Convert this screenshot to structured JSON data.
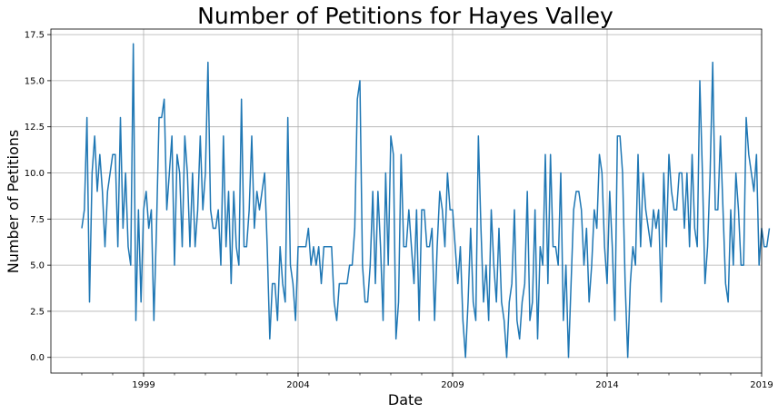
{
  "chart_data": {
    "type": "line",
    "title": "Number of Petitions for Hayes Valley",
    "xlabel": "Date",
    "ylabel": "Number of Petitions",
    "x_ticks": [
      "1999",
      "2004",
      "2009",
      "2014",
      "2019"
    ],
    "y_ticks": [
      "0.0",
      "2.5",
      "5.0",
      "7.5",
      "10.0",
      "12.5",
      "15.0",
      "17.5"
    ],
    "xlim": [
      "1996-01",
      "2019-01"
    ],
    "ylim": [
      -0.85,
      17.8
    ],
    "grid": true,
    "series": [
      {
        "color": "#1f77b4",
        "x_start": "1997-01",
        "x_step": "1 month",
        "values": [
          7,
          8,
          13,
          3,
          10,
          12,
          9,
          11,
          9,
          6,
          9,
          10,
          11,
          11,
          6,
          13,
          7,
          10,
          6,
          5,
          17,
          2,
          8,
          3,
          8,
          9,
          7,
          8,
          2,
          7,
          13,
          13,
          14,
          8,
          10,
          12,
          5,
          11,
          10,
          6,
          12,
          10,
          6,
          10,
          6,
          8,
          12,
          8,
          10,
          16,
          8,
          7,
          7,
          8,
          5,
          12,
          6,
          9,
          4,
          9,
          6,
          5,
          14,
          6,
          6,
          8,
          12,
          7,
          9,
          8,
          9,
          10,
          6,
          1,
          4,
          4,
          2,
          6,
          4,
          3,
          13,
          5,
          4,
          2,
          6,
          6,
          6,
          6,
          7,
          5,
          6,
          5,
          6,
          4,
          6,
          6,
          6,
          6,
          3,
          2,
          4,
          4,
          4,
          4,
          5,
          5,
          7,
          14,
          15,
          5,
          3,
          3,
          5,
          9,
          4,
          9,
          6,
          2,
          10,
          5,
          12,
          11,
          1,
          3,
          11,
          6,
          6,
          8,
          6,
          4,
          8,
          2,
          8,
          8,
          6,
          6,
          7,
          2,
          6,
          9,
          8,
          6,
          10,
          8,
          8,
          6,
          4,
          6,
          2,
          0,
          3,
          7,
          3,
          2,
          12,
          7,
          3,
          5,
          2,
          8,
          5,
          3,
          7,
          3,
          2,
          0,
          3,
          4,
          8,
          2,
          1,
          3,
          4,
          9,
          2,
          3,
          8,
          1,
          6,
          5,
          11,
          4,
          11,
          6,
          6,
          5,
          10,
          2,
          5,
          0,
          4,
          8,
          9,
          9,
          8,
          5,
          7,
          3,
          5,
          8,
          7,
          11,
          10,
          6,
          4,
          9,
          6,
          2,
          12,
          12,
          10,
          4,
          0,
          4,
          6,
          5,
          11,
          6,
          10,
          8,
          7,
          6,
          8,
          7,
          8,
          3,
          10,
          6,
          11,
          9,
          8,
          8,
          10,
          10,
          7,
          10,
          6,
          11,
          7,
          6,
          15,
          10,
          4,
          6,
          10,
          16,
          8,
          8,
          12,
          8,
          4,
          3,
          8,
          5,
          10,
          8,
          5,
          5,
          13,
          11,
          10,
          9,
          11,
          5,
          7,
          6,
          6,
          7
        ]
      }
    ]
  }
}
